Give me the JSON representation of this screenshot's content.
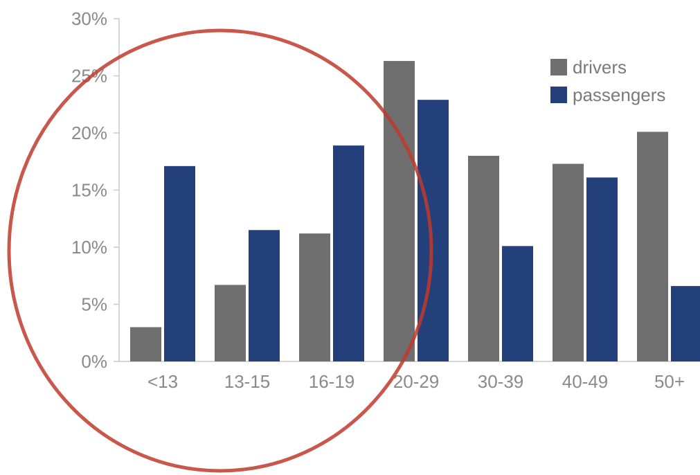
{
  "chart_data": {
    "type": "bar",
    "categories": [
      "<13",
      "13-15",
      "16-19",
      "20-29",
      "30-39",
      "40-49",
      "50+"
    ],
    "series": [
      {
        "name": "drivers",
        "color": "#6f6f6f",
        "values": [
          3,
          6.7,
          11.2,
          26.3,
          18,
          17.3,
          20.1
        ]
      },
      {
        "name": "passengers",
        "color": "#23407a",
        "values": [
          17.1,
          11.5,
          18.9,
          22.9,
          10.1,
          16.1,
          6.6
        ]
      }
    ],
    "y_ticks": [
      "0%",
      "5%",
      "10%",
      "15%",
      "20%",
      "25%",
      "30%"
    ],
    "ylim": [
      0,
      30
    ],
    "title": "",
    "xlabel": "",
    "ylabel": "",
    "legend_position": "top-right",
    "grid": false,
    "annotation": {
      "shape": "circle",
      "color": "#c0392b"
    }
  }
}
